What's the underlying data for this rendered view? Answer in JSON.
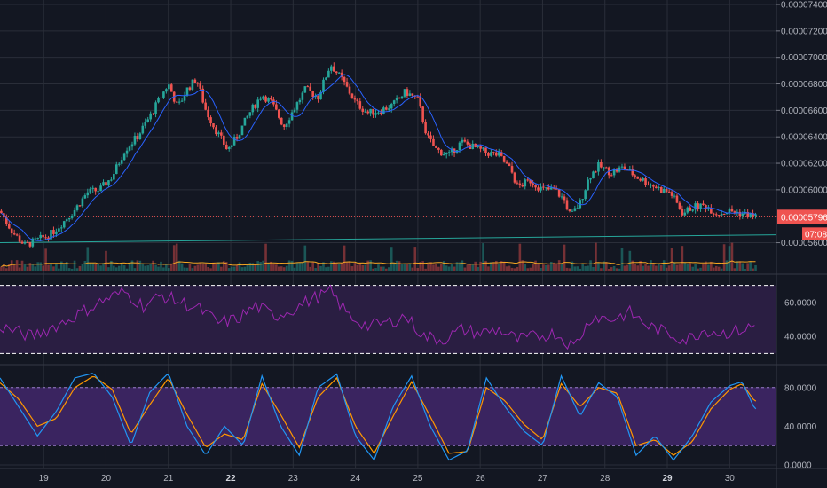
{
  "colors": {
    "background": "#131722",
    "grid": "#2a2e39",
    "up": "#26a69a",
    "down": "#ef5350",
    "ma": "#2962ff",
    "volume_ma": "#f5a623",
    "trendline": "#26a69a",
    "rsi_line": "#9c27b0",
    "rsi_fill": "#2a1e42",
    "stoch_k": "#2196f3",
    "stoch_d": "#ff9800",
    "stoch_fill": "#3a2460",
    "price_tag": "#ef5350"
  },
  "price_axis": {
    "ticks": [
      "0.00007400",
      "0.00007200",
      "0.00007000",
      "0.00006800",
      "0.00006600",
      "0.00006400",
      "0.00006200",
      "0.00006000",
      "0.00005800",
      "0.00005600"
    ],
    "last_price_label": "0.00005796",
    "countdown_label": "07:08"
  },
  "rsi_axis": {
    "ticks": [
      "60.0000",
      "40.0000"
    ]
  },
  "stoch_axis": {
    "ticks": [
      "80.0000",
      "40.0000",
      "0.0000"
    ]
  },
  "date_axis": {
    "labels": [
      {
        "text": "19",
        "bold": false
      },
      {
        "text": "20",
        "bold": false
      },
      {
        "text": "21",
        "bold": false
      },
      {
        "text": "22",
        "bold": true
      },
      {
        "text": "23",
        "bold": false
      },
      {
        "text": "24",
        "bold": false
      },
      {
        "text": "25",
        "bold": false
      },
      {
        "text": "26",
        "bold": false
      },
      {
        "text": "27",
        "bold": false
      },
      {
        "text": "28",
        "bold": false
      },
      {
        "text": "29",
        "bold": true
      },
      {
        "text": "30",
        "bold": false
      }
    ]
  },
  "chart_data": {
    "type": "candlestick",
    "x_range": [
      18.3,
      30.75
    ],
    "price_range": [
      5.53e-05,
      7.4e-05
    ],
    "last_price": 5.796e-05,
    "close_path": [
      [
        18.3,
        5.84e-05
      ],
      [
        18.5,
        5.68e-05
      ],
      [
        18.7,
        5.58e-05
      ],
      [
        18.9,
        5.62e-05
      ],
      [
        19.1,
        5.66e-05
      ],
      [
        19.3,
        5.75e-05
      ],
      [
        19.5,
        5.85e-05
      ],
      [
        19.7,
        5.98e-05
      ],
      [
        19.9,
        6e-05
      ],
      [
        20.1,
        6.1e-05
      ],
      [
        20.3,
        6.3e-05
      ],
      [
        20.5,
        6.4e-05
      ],
      [
        20.7,
        6.55e-05
      ],
      [
        20.85,
        6.68e-05
      ],
      [
        21.0,
        6.8e-05
      ],
      [
        21.15,
        6.62e-05
      ],
      [
        21.3,
        6.76e-05
      ],
      [
        21.45,
        6.84e-05
      ],
      [
        21.6,
        6.6e-05
      ],
      [
        21.75,
        6.46e-05
      ],
      [
        21.95,
        6.3e-05
      ],
      [
        22.1,
        6.4e-05
      ],
      [
        22.3,
        6.58e-05
      ],
      [
        22.5,
        6.72e-05
      ],
      [
        22.65,
        6.66e-05
      ],
      [
        22.85,
        6.48e-05
      ],
      [
        23.0,
        6.6e-05
      ],
      [
        23.2,
        6.76e-05
      ],
      [
        23.4,
        6.7e-05
      ],
      [
        23.6,
        6.95e-05
      ],
      [
        23.8,
        6.82e-05
      ],
      [
        24.0,
        6.66e-05
      ],
      [
        24.2,
        6.58e-05
      ],
      [
        24.4,
        6.6e-05
      ],
      [
        24.6,
        6.64e-05
      ],
      [
        24.8,
        6.74e-05
      ],
      [
        25.0,
        6.68e-05
      ],
      [
        25.15,
        6.4e-05
      ],
      [
        25.3,
        6.3e-05
      ],
      [
        25.5,
        6.26e-05
      ],
      [
        25.7,
        6.36e-05
      ],
      [
        25.9,
        6.32e-05
      ],
      [
        26.1,
        6.28e-05
      ],
      [
        26.3,
        6.26e-05
      ],
      [
        26.5,
        6.14e-05
      ],
      [
        26.6,
        6.02e-05
      ],
      [
        26.8,
        6.07e-05
      ],
      [
        27.0,
        6e-05
      ],
      [
        27.2,
        6e-05
      ],
      [
        27.35,
        5.92e-05
      ],
      [
        27.45,
        5.8e-05
      ],
      [
        27.6,
        5.9e-05
      ],
      [
        27.75,
        6.1e-05
      ],
      [
        27.9,
        6.18e-05
      ],
      [
        28.1,
        6.13e-05
      ],
      [
        28.3,
        6.17e-05
      ],
      [
        28.5,
        6.1e-05
      ],
      [
        28.7,
        6.05e-05
      ],
      [
        28.9,
        6e-05
      ],
      [
        29.05,
        5.98e-05
      ],
      [
        29.25,
        5.82e-05
      ],
      [
        29.4,
        5.87e-05
      ],
      [
        29.6,
        5.88e-05
      ],
      [
        29.8,
        5.82e-05
      ],
      [
        30.0,
        5.84e-05
      ],
      [
        30.2,
        5.82e-05
      ],
      [
        30.4,
        5.8e-05
      ]
    ],
    "price_line_note": "dotted red horizontal line at last price",
    "trendline": [
      [
        18.3,
        5.6e-05
      ],
      [
        30.75,
        5.66e-05
      ]
    ],
    "indicators": {
      "rsi": {
        "range": [
          25,
          75
        ],
        "upper_band": 70,
        "lower_band": 30,
        "series": [
          [
            18.3,
            46
          ],
          [
            18.8,
            40
          ],
          [
            19.3,
            48
          ],
          [
            19.7,
            56
          ],
          [
            20.0,
            62
          ],
          [
            20.3,
            66
          ],
          [
            20.6,
            58
          ],
          [
            20.9,
            64
          ],
          [
            21.2,
            60
          ],
          [
            21.5,
            56
          ],
          [
            21.8,
            48
          ],
          [
            22.1,
            50
          ],
          [
            22.4,
            58
          ],
          [
            22.7,
            52
          ],
          [
            23.0,
            56
          ],
          [
            23.3,
            62
          ],
          [
            23.6,
            66
          ],
          [
            23.9,
            52
          ],
          [
            24.2,
            46
          ],
          [
            24.5,
            48
          ],
          [
            24.8,
            52
          ],
          [
            25.1,
            40
          ],
          [
            25.4,
            38
          ],
          [
            25.7,
            44
          ],
          [
            26.0,
            42
          ],
          [
            26.3,
            44
          ],
          [
            26.6,
            38
          ],
          [
            26.9,
            40
          ],
          [
            27.2,
            42
          ],
          [
            27.5,
            34
          ],
          [
            27.8,
            52
          ],
          [
            28.1,
            50
          ],
          [
            28.4,
            54
          ],
          [
            28.7,
            46
          ],
          [
            29.0,
            42
          ],
          [
            29.3,
            38
          ],
          [
            29.6,
            44
          ],
          [
            29.9,
            42
          ],
          [
            30.2,
            44
          ],
          [
            30.4,
            46
          ]
        ]
      },
      "stoch_rsi": {
        "range": [
          0,
          100
        ],
        "upper_band": 80,
        "lower_band": 20,
        "k": [
          [
            18.3,
            90
          ],
          [
            18.6,
            60
          ],
          [
            18.9,
            30
          ],
          [
            19.2,
            55
          ],
          [
            19.5,
            90
          ],
          [
            19.8,
            95
          ],
          [
            20.1,
            70
          ],
          [
            20.4,
            20
          ],
          [
            20.7,
            75
          ],
          [
            21.0,
            95
          ],
          [
            21.3,
            40
          ],
          [
            21.6,
            10
          ],
          [
            21.9,
            40
          ],
          [
            22.2,
            20
          ],
          [
            22.5,
            92
          ],
          [
            22.8,
            40
          ],
          [
            23.1,
            10
          ],
          [
            23.4,
            80
          ],
          [
            23.7,
            94
          ],
          [
            24.0,
            30
          ],
          [
            24.3,
            5
          ],
          [
            24.6,
            60
          ],
          [
            24.9,
            92
          ],
          [
            25.2,
            40
          ],
          [
            25.5,
            5
          ],
          [
            25.8,
            15
          ],
          [
            26.1,
            90
          ],
          [
            26.4,
            60
          ],
          [
            26.7,
            35
          ],
          [
            27.0,
            20
          ],
          [
            27.3,
            92
          ],
          [
            27.6,
            50
          ],
          [
            27.9,
            85
          ],
          [
            28.2,
            70
          ],
          [
            28.5,
            10
          ],
          [
            28.8,
            30
          ],
          [
            29.1,
            5
          ],
          [
            29.4,
            30
          ],
          [
            29.7,
            65
          ],
          [
            30.0,
            82
          ],
          [
            30.2,
            86
          ],
          [
            30.4,
            58
          ]
        ],
        "d": [
          [
            18.3,
            85
          ],
          [
            18.6,
            68
          ],
          [
            18.9,
            40
          ],
          [
            19.2,
            48
          ],
          [
            19.5,
            80
          ],
          [
            19.8,
            92
          ],
          [
            20.1,
            78
          ],
          [
            20.4,
            32
          ],
          [
            20.7,
            62
          ],
          [
            21.0,
            90
          ],
          [
            21.3,
            52
          ],
          [
            21.6,
            18
          ],
          [
            21.9,
            32
          ],
          [
            22.2,
            26
          ],
          [
            22.5,
            84
          ],
          [
            22.8,
            52
          ],
          [
            23.1,
            18
          ],
          [
            23.4,
            70
          ],
          [
            23.7,
            90
          ],
          [
            24.0,
            40
          ],
          [
            24.3,
            12
          ],
          [
            24.6,
            50
          ],
          [
            24.9,
            86
          ],
          [
            25.2,
            50
          ],
          [
            25.5,
            12
          ],
          [
            25.8,
            14
          ],
          [
            26.1,
            80
          ],
          [
            26.4,
            66
          ],
          [
            26.7,
            42
          ],
          [
            27.0,
            26
          ],
          [
            27.3,
            84
          ],
          [
            27.6,
            60
          ],
          [
            27.9,
            80
          ],
          [
            28.2,
            74
          ],
          [
            28.5,
            20
          ],
          [
            28.8,
            26
          ],
          [
            29.1,
            10
          ],
          [
            29.4,
            24
          ],
          [
            29.7,
            58
          ],
          [
            30.0,
            78
          ],
          [
            30.2,
            84
          ],
          [
            30.4,
            66
          ]
        ]
      }
    }
  }
}
